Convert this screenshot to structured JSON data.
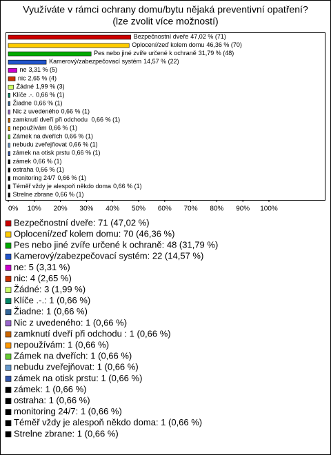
{
  "chart_data": {
    "type": "bar",
    "orientation": "horizontal",
    "title": "Využíváte v rámci ochrany domu/bytu nějaká preventivní opatření?",
    "subtitle": "(lze zvolit více možností)",
    "categories": [
      "Bezpečnostní dveře",
      "Oplocení/zeď kolem domu",
      "Pes nebo jiné zvíře určené k ochraně",
      "Kamerový/zabezpečovací systém",
      "ne",
      "nic",
      "Žádné",
      "Klíče .-.",
      "Žiadne",
      "Nic z uvedeného",
      "zamknutí dveří při odchodu ",
      "nepoužívám",
      "Zámek na dveřích",
      "nebudu zveřejňovat",
      "zámek na otisk prstu",
      "zámek",
      "ostraha",
      "monitoring 24/7",
      "Téměř vždy je alespoň někdo doma",
      "Strelne zbrane"
    ],
    "values": [
      47.02,
      46.36,
      31.79,
      14.57,
      3.31,
      2.65,
      1.99,
      0.66,
      0.66,
      0.66,
      0.66,
      0.66,
      0.66,
      0.66,
      0.66,
      0.66,
      0.66,
      0.66,
      0.66,
      0.66
    ],
    "value_labels": [
      "47,02 % (71)",
      "46,36 % (70)",
      "31,79 % (48)",
      "14,57 % (22)",
      "3,31 % (5)",
      "2,65 % (4)",
      "1,99 % (3)",
      "0,66 % (1)",
      "0,66 % (1)",
      "0,66 % (1)",
      "0,66 % (1)",
      "0,66 % (1)",
      "0,66 % (1)",
      "0,66 % (1)",
      "0,66 % (1)",
      "0,66 % (1)",
      "0,66 % (1)",
      "0,66 % (1)",
      "0,66 % (1)",
      "0,66 % (1)"
    ],
    "legend_labels": [
      "Bezpečnostní dveře: 71 (47,02 %)",
      "Oplocení/zeď kolem domu: 70 (46,36 %)",
      "Pes nebo jiné zvíře určené k ochraně: 48 (31,79 %)",
      "Kamerový/zabezpečovací systém: 22 (14,57 %)",
      "ne: 5 (3,31 %)",
      "nic: 4 (2,65 %)",
      "Žádné: 3 (1,99 %)",
      "Klíče .-.: 1 (0,66 %)",
      "Žiadne: 1 (0,66 %)",
      "Nic z uvedeného: 1 (0,66 %)",
      "zamknutí dveří při odchodu : 1 (0,66 %)",
      "nepoužívám: 1 (0,66 %)",
      "Zámek na dveřích: 1 (0,66 %)",
      "nebudu zveřejňovat: 1 (0,66 %)",
      "zámek na otisk prstu: 1 (0,66 %)",
      "zámek: 1 (0,66 %)",
      "ostraha: 1 (0,66 %)",
      "monitoring 24/7: 1 (0,66 %)",
      "Téměř vždy je alespoň někdo doma: 1 (0,66 %)",
      "Strelne zbrane: 1 (0,66 %)"
    ],
    "colors": [
      "#cc0000",
      "#ffcc00",
      "#00aa00",
      "#2255cc",
      "#cc00cc",
      "#cc3300",
      "#ccff66",
      "#008866",
      "#336699",
      "#9966cc",
      "#cc6600",
      "#ff9900",
      "#66cc33",
      "#6699cc",
      "#3355aa",
      "#000000",
      "#000000",
      "#000000",
      "#000000",
      "#000000"
    ],
    "xlim": [
      0,
      100
    ],
    "xticks": [
      {
        "value": 0,
        "label": "0%"
      },
      {
        "value": 10,
        "label": "10%"
      },
      {
        "value": 20,
        "label": "20%"
      },
      {
        "value": 30,
        "label": "30%"
      },
      {
        "value": 40,
        "label": "40%"
      },
      {
        "value": 50,
        "label": "50%"
      },
      {
        "value": 60,
        "label": "60%"
      },
      {
        "value": 70,
        "label": "70%"
      },
      {
        "value": 80,
        "label": "80%"
      },
      {
        "value": 90,
        "label": "90%"
      },
      {
        "value": 100,
        "label": "100%"
      }
    ]
  }
}
